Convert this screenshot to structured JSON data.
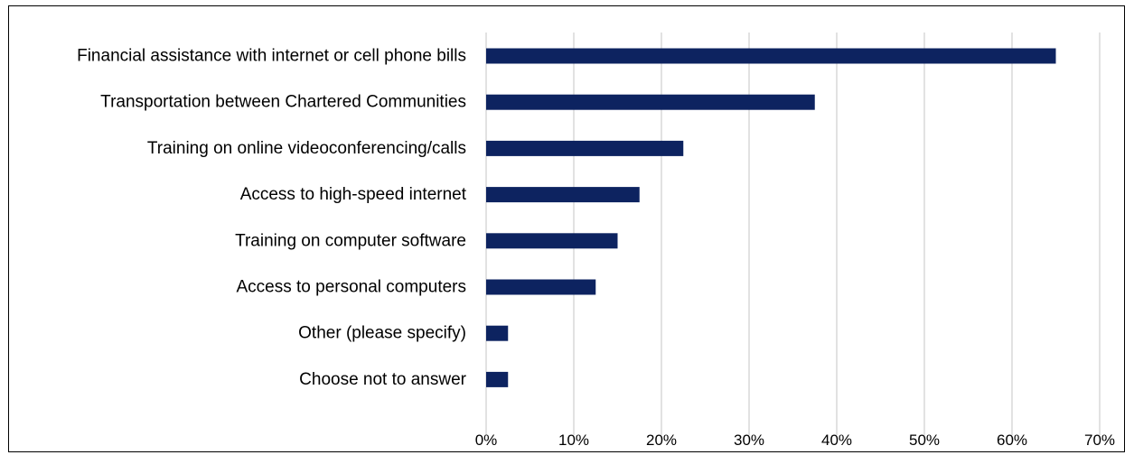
{
  "chart_data": {
    "type": "bar",
    "orientation": "horizontal",
    "title": "",
    "xlabel": "",
    "ylabel": "",
    "categories": [
      "Financial assistance with internet or cell phone bills",
      "Transportation between Chartered Communities",
      "Training on online videoconferencing/calls",
      "Access to high-speed internet",
      "Training on computer software",
      "Access to personal computers",
      "Other (please specify)",
      "Choose not to answer"
    ],
    "values": [
      65,
      37.5,
      22.5,
      17.5,
      15,
      12.5,
      2.5,
      2.5
    ],
    "unit": "%",
    "xlim": [
      0,
      70
    ],
    "ticks": [
      "0%",
      "10%",
      "20%",
      "30%",
      "40%",
      "50%",
      "60%",
      "70%"
    ],
    "grid": true,
    "legend": "none",
    "colors": {
      "bar": "#0d2360",
      "grid": "#d9d9d9",
      "border": "#000000"
    }
  }
}
